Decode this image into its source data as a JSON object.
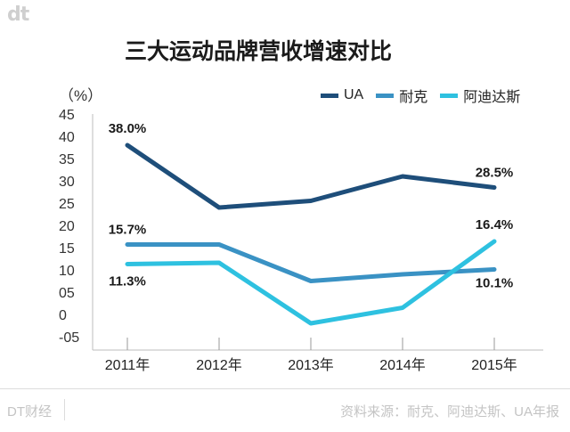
{
  "brand": {
    "logo": "dt",
    "footer_name": "DT财经"
  },
  "source": "资料来源：耐克、阿迪达斯、UA年报",
  "chart_data": {
    "type": "line",
    "title": "三大运动品牌营收增速对比",
    "unit": "（%）",
    "categories": [
      "2011年",
      "2012年",
      "2013年",
      "2014年",
      "2015年"
    ],
    "y_ticks": [
      "45",
      "40",
      "35",
      "30",
      "25",
      "20",
      "15",
      "10",
      "05",
      "0",
      "-05"
    ],
    "ylim": [
      -5,
      45
    ],
    "grid": false,
    "legend_position": "top-right",
    "series": [
      {
        "name": "UA",
        "color": "#1e4e7a",
        "values": [
          38.0,
          24.0,
          25.5,
          31.0,
          28.5
        ]
      },
      {
        "name": "耐克",
        "color": "#3a92c4",
        "values": [
          15.7,
          15.7,
          7.5,
          9.0,
          10.1
        ]
      },
      {
        "name": "阿迪达斯",
        "color": "#2ec1e0",
        "values": [
          11.3,
          11.6,
          -2.0,
          1.5,
          16.4
        ]
      }
    ],
    "data_labels": [
      {
        "series": 0,
        "index": 0,
        "text": "38.0%"
      },
      {
        "series": 0,
        "index": 4,
        "text": "28.5%"
      },
      {
        "series": 1,
        "index": 0,
        "text": "15.7%"
      },
      {
        "series": 1,
        "index": 4,
        "text": "10.1%"
      },
      {
        "series": 2,
        "index": 0,
        "text": "11.3%"
      },
      {
        "series": 2,
        "index": 4,
        "text": "16.4%"
      }
    ]
  }
}
